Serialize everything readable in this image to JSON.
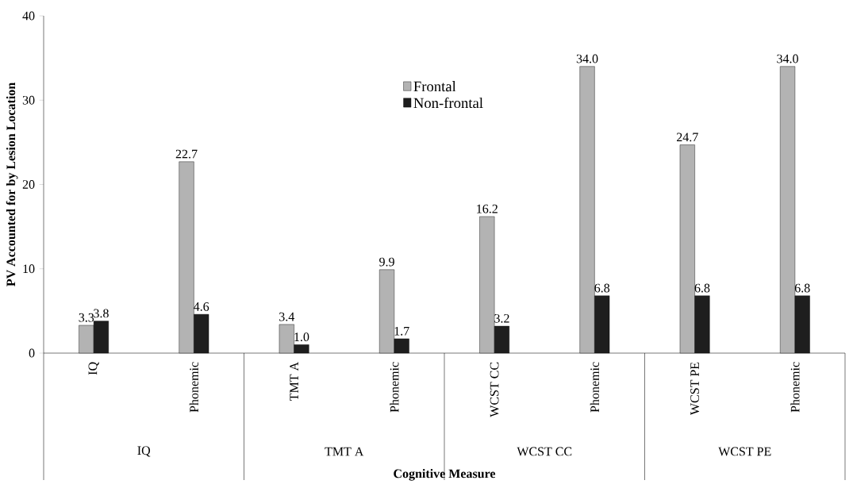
{
  "chart_data": {
    "type": "bar",
    "categories": [
      "IQ",
      "Phonemic",
      "TMT A",
      "Phonemic",
      "WCST CC",
      "Phonemic",
      "WCST PE",
      "Phonemic"
    ],
    "series": [
      {
        "name": "Frontal",
        "color": "#b3b3b3",
        "values": [
          3.3,
          22.7,
          3.4,
          9.9,
          16.2,
          34.0,
          24.7,
          34.0
        ],
        "value_labels": [
          "3.3",
          "22.7",
          "3.4",
          "9.9",
          "16.2",
          "34.0",
          "24.7",
          "34.0"
        ]
      },
      {
        "name": "Non-frontal",
        "color": "#1e1e1e",
        "values": [
          3.8,
          4.6,
          1.0,
          1.7,
          3.2,
          6.8,
          6.8,
          6.8
        ],
        "value_labels": [
          "3.8",
          "4.6",
          "1.0",
          "1.7",
          "3.2",
          "6.8",
          "6.8",
          "6.8"
        ]
      }
    ],
    "xlabel": "Cognitive Measure",
    "ylabel": "PV Accounted for by Lesion Location",
    "annotations": [
      "IQ",
      "TMT A",
      "WCST CC",
      "WCST PE"
    ],
    "ylim": [
      0,
      40
    ],
    "yticks": [
      0,
      10,
      20,
      30,
      40
    ],
    "legend": "top"
  }
}
